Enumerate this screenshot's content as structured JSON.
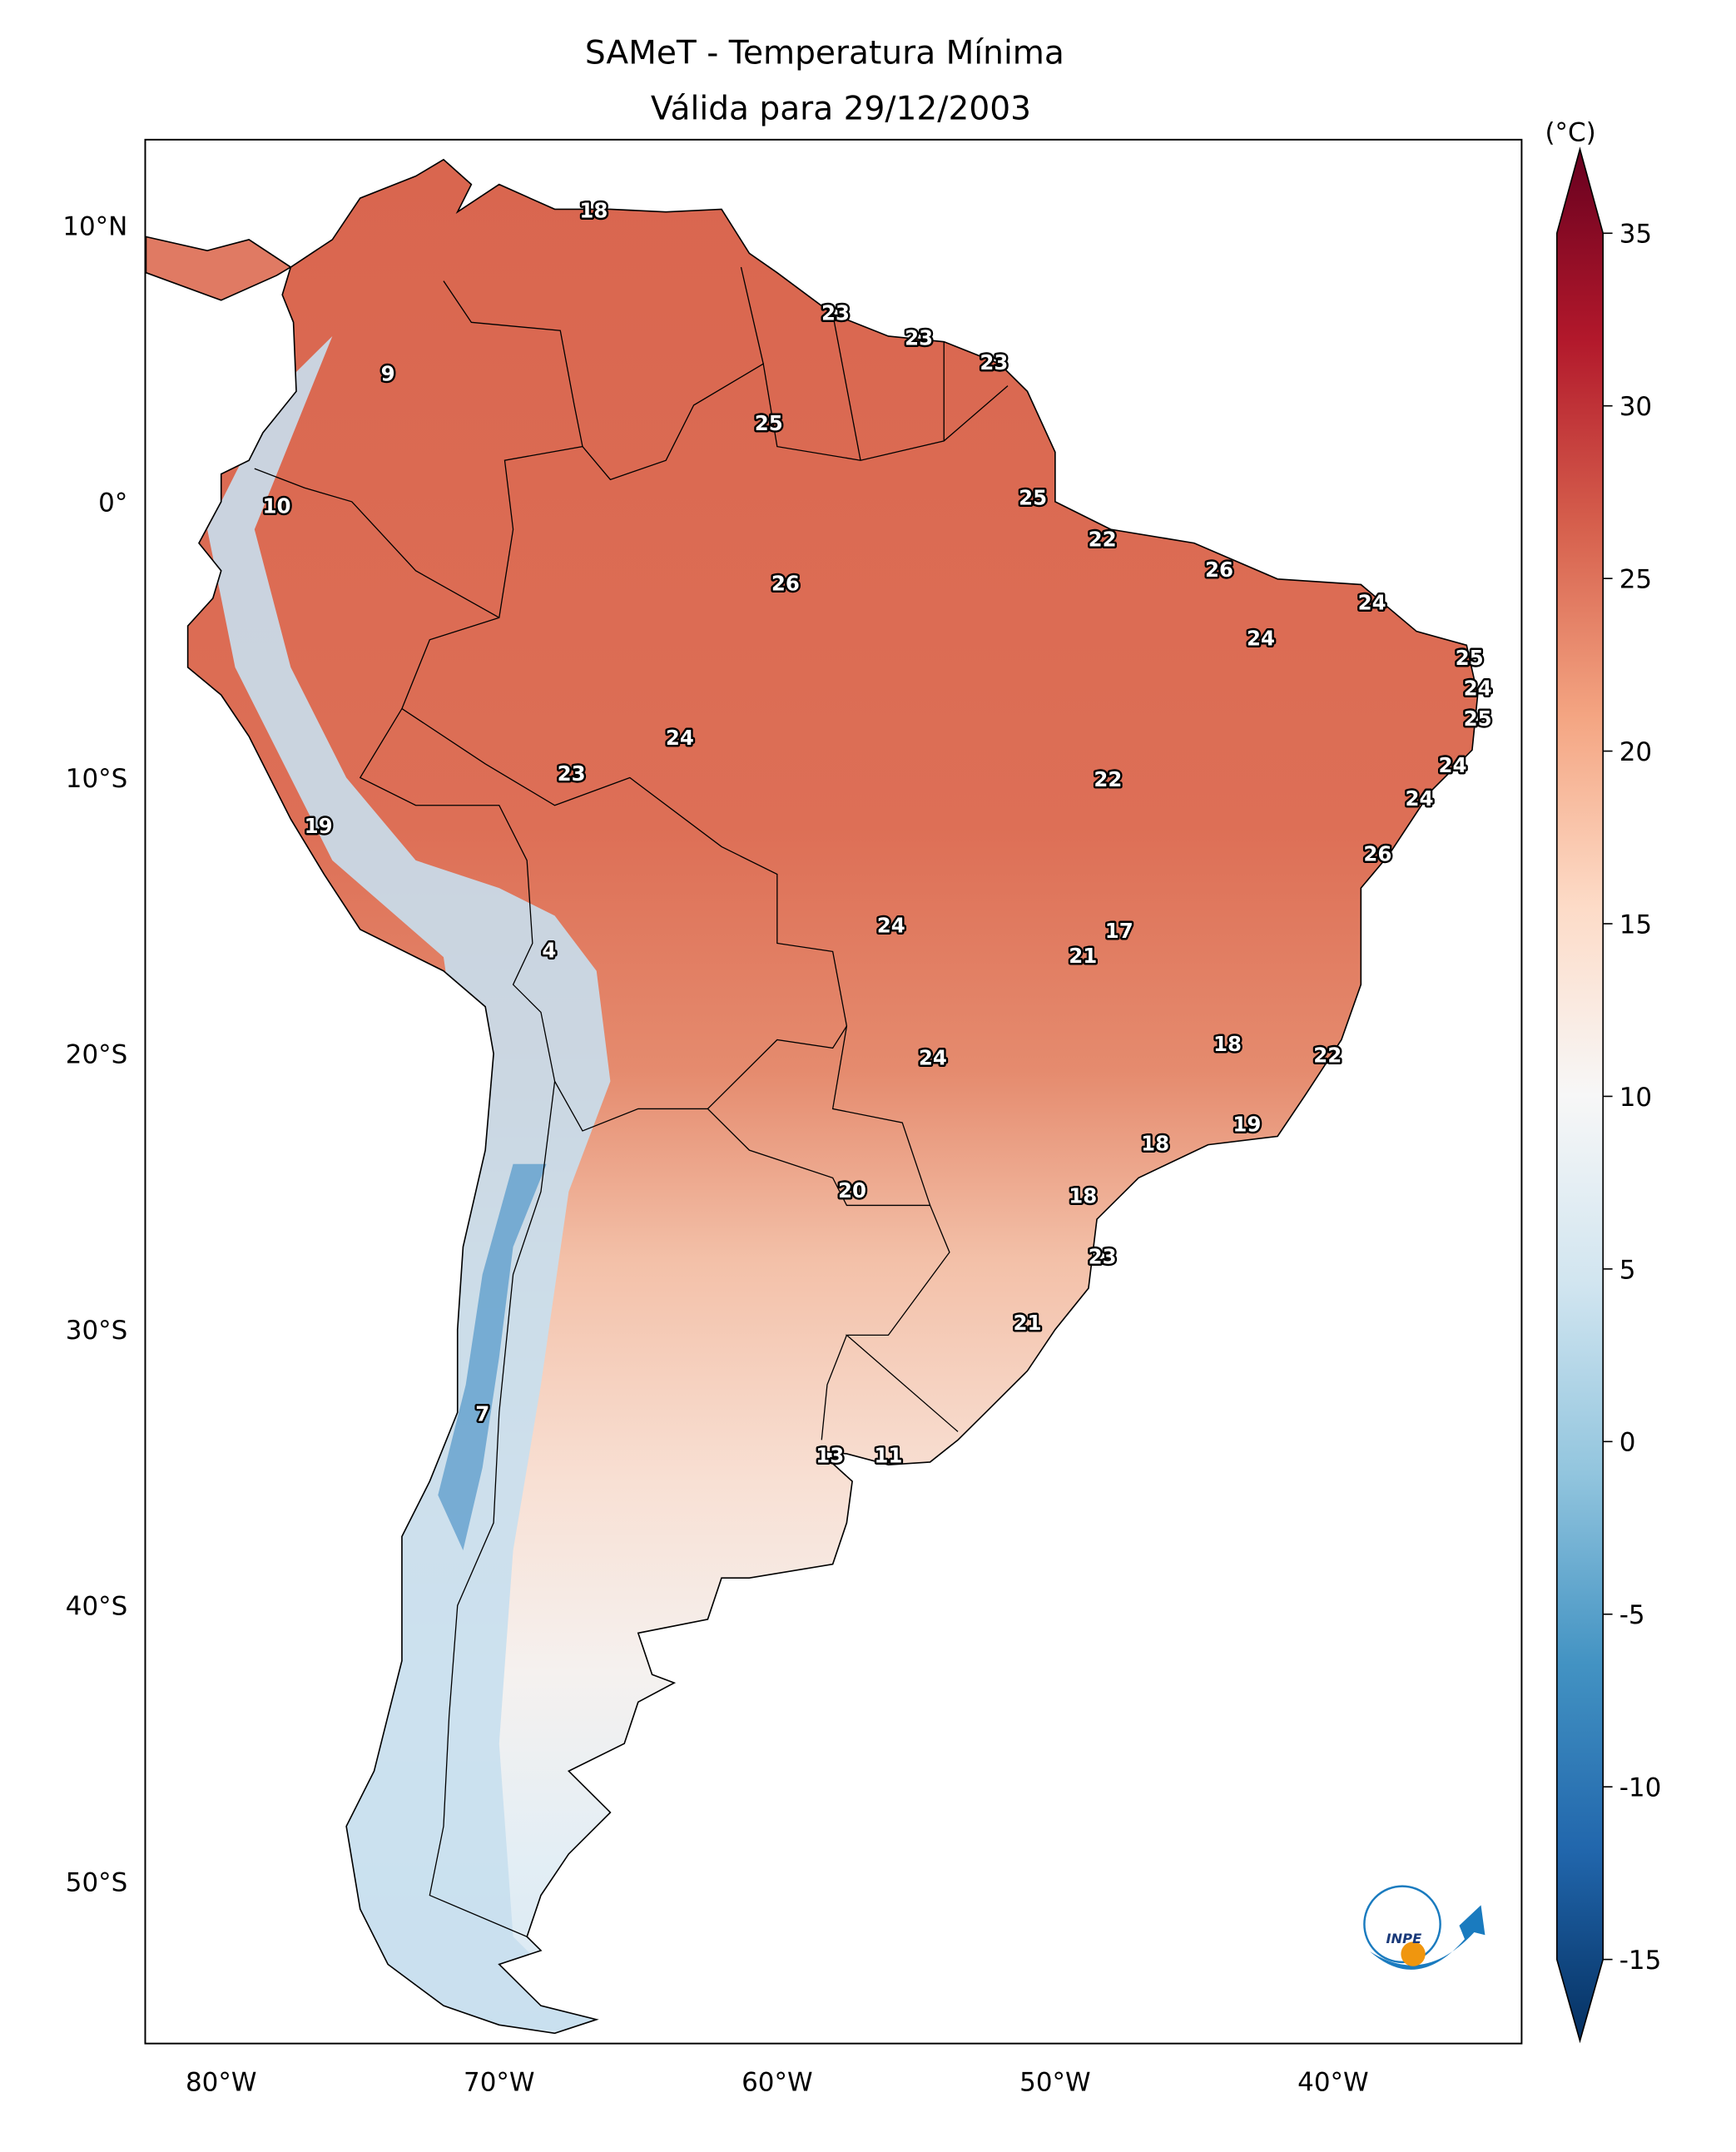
{
  "title_line1": "SAMeT - Temperatura Mínima",
  "title_line2": "Válida para 29/12/2003",
  "colorbar": {
    "unit_label": "(°C)",
    "min": -15,
    "max": 35,
    "ticks": [
      35,
      30,
      25,
      20,
      15,
      10,
      5,
      0,
      -5,
      -10,
      -15
    ],
    "tick_labels": [
      "35",
      "30",
      "25",
      "20",
      "15",
      "10",
      "5",
      "0",
      "-5",
      "-10",
      "-15"
    ],
    "colors": [
      {
        "v": -15,
        "c": "#053061"
      },
      {
        "v": -10,
        "c": "#2166ac"
      },
      {
        "v": -5,
        "c": "#4393c3"
      },
      {
        "v": 0,
        "c": "#92c5de"
      },
      {
        "v": 5,
        "c": "#d1e5f0"
      },
      {
        "v": 10,
        "c": "#f7f7f7"
      },
      {
        "v": 15,
        "c": "#fddbc7"
      },
      {
        "v": 20,
        "c": "#f4a582"
      },
      {
        "v": 25,
        "c": "#d6604d"
      },
      {
        "v": 30,
        "c": "#b2182b"
      },
      {
        "v": 35,
        "c": "#67001f"
      }
    ]
  },
  "logo": {
    "text": "INPE"
  },
  "chart_data": {
    "type": "heatmap",
    "title": "SAMeT - Temperatura Mínima — Válida para 29/12/2003",
    "xlim": [
      -82.7,
      -33.2
    ],
    "ylim": [
      -56.7,
      12.8
    ],
    "x_ticks": [
      -80,
      -70,
      -60,
      -50,
      -40
    ],
    "x_tick_labels": [
      "80°W",
      "70°W",
      "60°W",
      "50°W",
      "40°W"
    ],
    "y_ticks": [
      10,
      0,
      -10,
      -20,
      -30,
      -40,
      -50
    ],
    "y_tick_labels": [
      "10°N",
      "0°",
      "10°S",
      "20°S",
      "30°S",
      "40°S",
      "50°S"
    ],
    "station_labels": [
      {
        "value": "18",
        "lon": -66.6,
        "lat": 10.5
      },
      {
        "value": "23",
        "lon": -57.9,
        "lat": 6.8
      },
      {
        "value": "23",
        "lon": -54.9,
        "lat": 5.9
      },
      {
        "value": "23",
        "lon": -52.2,
        "lat": 5.0
      },
      {
        "value": "9",
        "lon": -74.0,
        "lat": 4.6
      },
      {
        "value": "25",
        "lon": -60.3,
        "lat": 2.8
      },
      {
        "value": "10",
        "lon": -78.0,
        "lat": -0.2
      },
      {
        "value": "25",
        "lon": -50.8,
        "lat": 0.1
      },
      {
        "value": "22",
        "lon": -48.3,
        "lat": -1.4
      },
      {
        "value": "26",
        "lon": -44.1,
        "lat": -2.5
      },
      {
        "value": "26",
        "lon": -59.7,
        "lat": -3.0
      },
      {
        "value": "24",
        "lon": -38.6,
        "lat": -3.7
      },
      {
        "value": "24",
        "lon": -42.6,
        "lat": -5.0
      },
      {
        "value": "25",
        "lon": -35.1,
        "lat": -5.7
      },
      {
        "value": "24",
        "lon": -34.8,
        "lat": -6.8
      },
      {
        "value": "25",
        "lon": -34.8,
        "lat": -7.9
      },
      {
        "value": "24",
        "lon": -63.5,
        "lat": -8.6
      },
      {
        "value": "24",
        "lon": -35.7,
        "lat": -9.6
      },
      {
        "value": "23",
        "lon": -67.4,
        "lat": -9.9
      },
      {
        "value": "22",
        "lon": -48.1,
        "lat": -10.1
      },
      {
        "value": "24",
        "lon": -36.9,
        "lat": -10.8
      },
      {
        "value": "19",
        "lon": -76.5,
        "lat": -11.8
      },
      {
        "value": "26",
        "lon": -38.4,
        "lat": -12.8
      },
      {
        "value": "24",
        "lon": -55.9,
        "lat": -15.4
      },
      {
        "value": "17",
        "lon": -47.7,
        "lat": -15.6
      },
      {
        "value": "4",
        "lon": -68.2,
        "lat": -16.3
      },
      {
        "value": "21",
        "lon": -49.0,
        "lat": -16.5
      },
      {
        "value": "18",
        "lon": -43.8,
        "lat": -19.7
      },
      {
        "value": "22",
        "lon": -40.2,
        "lat": -20.1
      },
      {
        "value": "24",
        "lon": -54.4,
        "lat": -20.2
      },
      {
        "value": "19",
        "lon": -43.1,
        "lat": -22.6
      },
      {
        "value": "18",
        "lon": -46.4,
        "lat": -23.3
      },
      {
        "value": "20",
        "lon": -57.3,
        "lat": -25.0
      },
      {
        "value": "18",
        "lon": -49.0,
        "lat": -25.2
      },
      {
        "value": "23",
        "lon": -48.3,
        "lat": -27.4
      },
      {
        "value": "21",
        "lon": -51.0,
        "lat": -29.8
      },
      {
        "value": "7",
        "lon": -70.6,
        "lat": -33.1
      },
      {
        "value": "13",
        "lon": -58.1,
        "lat": -34.6
      },
      {
        "value": "11",
        "lon": -56.0,
        "lat": -34.6
      }
    ]
  }
}
